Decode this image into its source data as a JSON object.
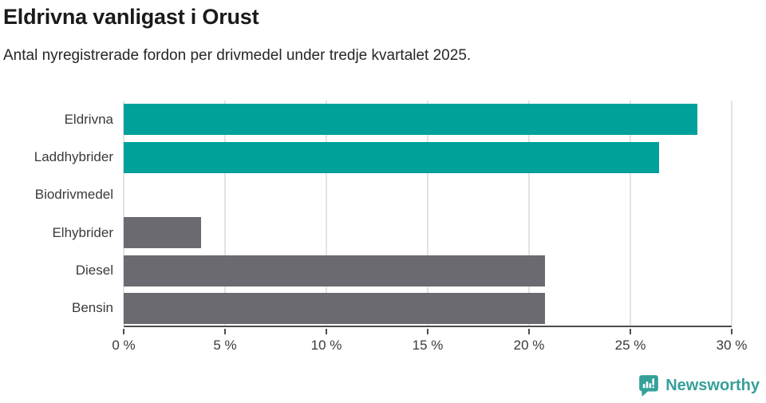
{
  "header": {
    "title": "Eldrivna vanligast i Orust",
    "subtitle": "Antal nyregistrerade fordon per drivmedel under tredje kvartalet 2025."
  },
  "chart_data": {
    "type": "bar",
    "orientation": "horizontal",
    "title": "Eldrivna vanligast i Orust",
    "subtitle": "Antal nyregistrerade fordon per drivmedel under tredje kvartalet 2025.",
    "categories": [
      "Eldrivna",
      "Laddhybrider",
      "Biodrivmedel",
      "Elhybrider",
      "Diesel",
      "Bensin"
    ],
    "values": [
      28.3,
      26.4,
      0,
      3.8,
      20.8,
      20.8
    ],
    "bar_colors": [
      "#00a09b",
      "#00a09b",
      "#00a09b",
      "#6b6a70",
      "#6b6a70",
      "#6b6a70"
    ],
    "xlim": [
      0,
      30
    ],
    "x_ticks": [
      0,
      5,
      10,
      15,
      20,
      25,
      30
    ],
    "x_tick_labels": [
      "0 %",
      "5 %",
      "10 %",
      "15 %",
      "20 %",
      "25 %",
      "30 %"
    ],
    "unit": "%",
    "grid": "vertical",
    "legend": "none"
  },
  "colors": {
    "teal": "#00a09b",
    "gray": "#6b6a70",
    "gridline": "#e3e3e3",
    "axis": "#4d4d4d",
    "brand_teal": "#35a099"
  },
  "footer": {
    "brand": "Newsworthy",
    "logo_icon": "speech-bubble-bar-chart-icon"
  }
}
